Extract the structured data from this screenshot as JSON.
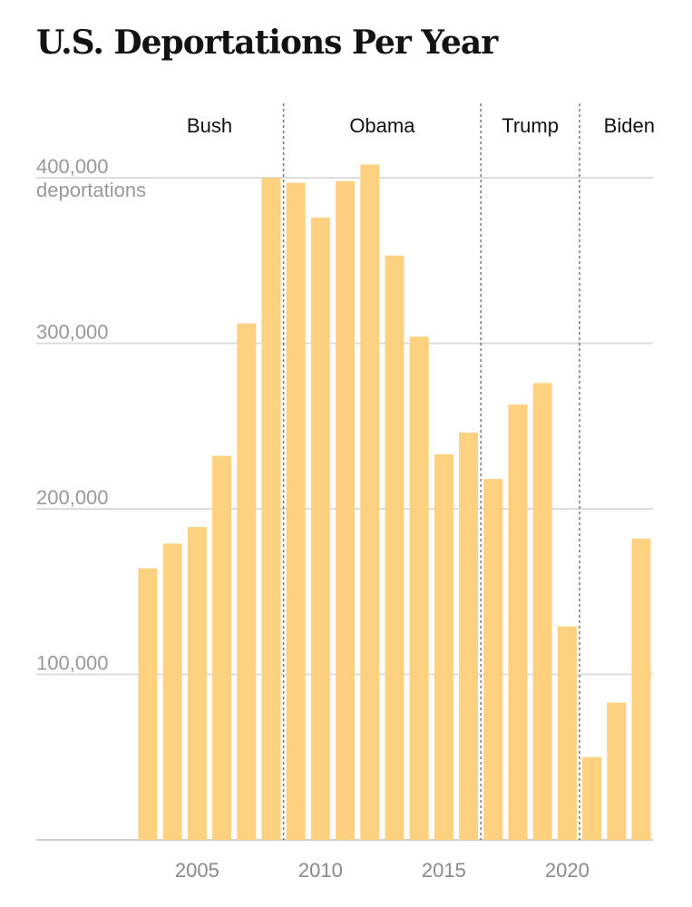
{
  "chart_data": {
    "type": "bar",
    "title": "U.S. Deportations Per Year",
    "ylabel": "deportations",
    "ylim": [
      0,
      400000
    ],
    "yticks": [
      {
        "value": 100000,
        "label": "100,000"
      },
      {
        "value": 200000,
        "label": "200,000"
      },
      {
        "value": 300000,
        "label": "300,000"
      },
      {
        "value": 400000,
        "label": "400,000"
      }
    ],
    "yunit": "deportations",
    "xticks": [
      2005,
      2010,
      2015,
      2020
    ],
    "categories": [
      2003,
      2004,
      2005,
      2006,
      2007,
      2008,
      2009,
      2010,
      2011,
      2012,
      2013,
      2014,
      2015,
      2016,
      2017,
      2018,
      2019,
      2020,
      2021,
      2022,
      2023
    ],
    "values": [
      164000,
      179000,
      189000,
      232000,
      312000,
      400000,
      397000,
      376000,
      398000,
      408000,
      353000,
      304000,
      233000,
      246000,
      218000,
      263000,
      276000,
      129000,
      50000,
      83000,
      182000
    ],
    "eras": [
      {
        "name": "Bush",
        "start": 2003,
        "end": 2008
      },
      {
        "name": "Obama",
        "start": 2009,
        "end": 2016
      },
      {
        "name": "Trump",
        "start": 2017,
        "end": 2020
      },
      {
        "name": "Biden",
        "start": 2021,
        "end": 2023
      }
    ],
    "bar_color": "#fdd17f",
    "grid": true
  }
}
